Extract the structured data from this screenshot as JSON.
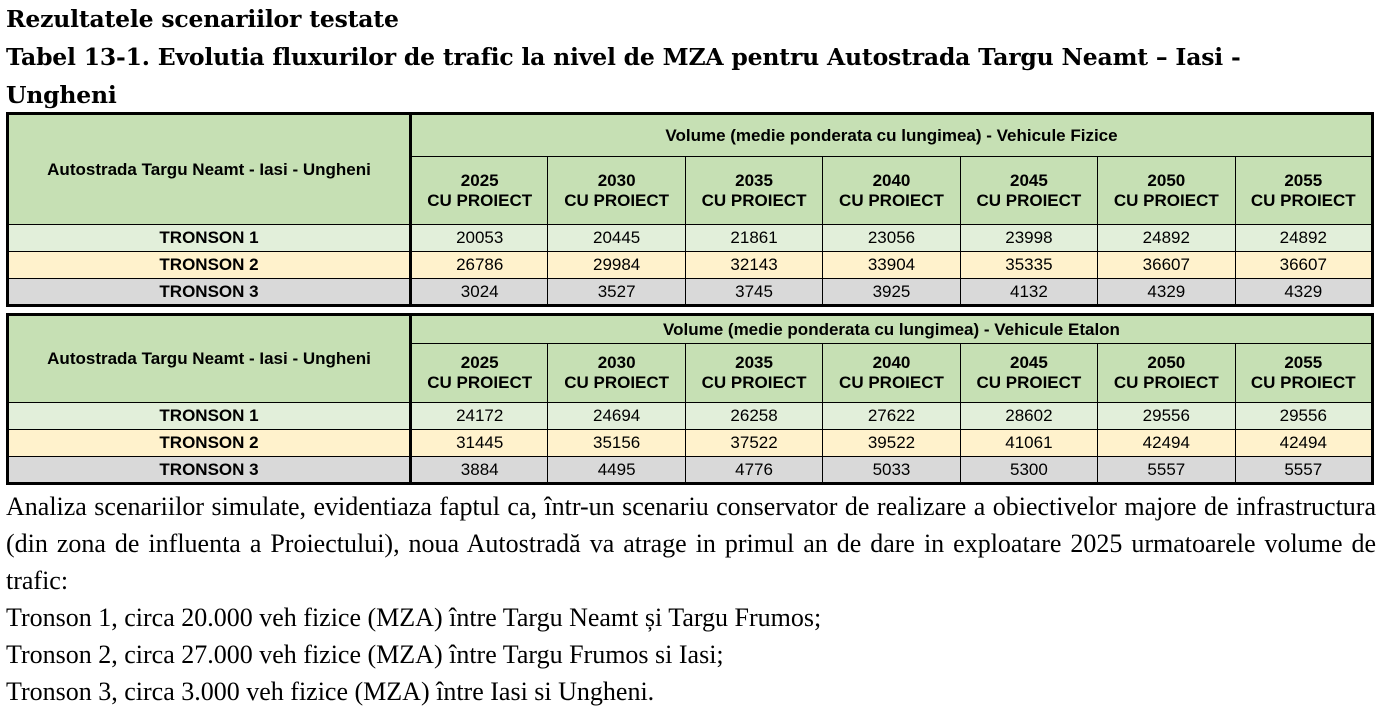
{
  "heading": "Rezultatele scenariilor testate",
  "caption_line1": "Tabel 13-1. Evolutia fluxurilor de trafic la nivel de MZA pentru Autostrada Targu Neamt – Iasi -",
  "caption_line2": "Ungheni",
  "colors": {
    "header": "#c6e0b4",
    "tronson1": "#e2efda",
    "tronson2": "#fff2cc",
    "tronson3": "#d9d9d9"
  },
  "tables": [
    {
      "row_header": "Autostrada Targu Neamt - Iasi - Ungheni",
      "group_header": "Volume (medie ponderata cu lungimea) - Vehicule Fizice",
      "years": [
        "2025",
        "2030",
        "2035",
        "2040",
        "2045",
        "2050",
        "2055"
      ],
      "sub_label": "CU PROIECT",
      "rows": [
        {
          "label": "TRONSON 1",
          "values": [
            "20053",
            "20445",
            "21861",
            "23056",
            "23998",
            "24892",
            "24892"
          ]
        },
        {
          "label": "TRONSON 2",
          "values": [
            "26786",
            "29984",
            "32143",
            "33904",
            "35335",
            "36607",
            "36607"
          ]
        },
        {
          "label": "TRONSON 3",
          "values": [
            "3024",
            "3527",
            "3745",
            "3925",
            "4132",
            "4329",
            "4329"
          ]
        }
      ]
    },
    {
      "row_header": "Autostrada Targu Neamt - Iasi - Ungheni",
      "group_header": "Volume (medie ponderata cu lungimea) - Vehicule Etalon",
      "years": [
        "2025",
        "2030",
        "2035",
        "2040",
        "2045",
        "2050",
        "2055"
      ],
      "sub_label": "CU PROIECT",
      "rows": [
        {
          "label": "TRONSON 1",
          "values": [
            "24172",
            "24694",
            "26258",
            "27622",
            "28602",
            "29556",
            "29556"
          ]
        },
        {
          "label": "TRONSON 2",
          "values": [
            "31445",
            "35156",
            "37522",
            "39522",
            "41061",
            "42494",
            "42494"
          ]
        },
        {
          "label": "TRONSON 3",
          "values": [
            "3884",
            "4495",
            "4776",
            "5033",
            "5300",
            "5557",
            "5557"
          ]
        }
      ]
    }
  ],
  "paragraph": "Analiza scenariilor simulate, evidentiaza faptul ca, într-un scenariu conservator de realizare a obiectivelor majore de infrastructura (din zona de influenta a Proiectului), noua Autostradă va atrage in primul an de dare in exploatare 2025 urmatoarele volume de trafic:",
  "bullets": [
    "Tronson 1, circa 20.000 veh fizice (MZA) între Targu Neamt și Targu Frumos;",
    "Tronson 2, circa 27.000 veh fizice (MZA) între Targu Frumos si Iasi;",
    "Tronson 3, circa 3.000 veh fizice (MZA) între Iasi si Ungheni."
  ]
}
